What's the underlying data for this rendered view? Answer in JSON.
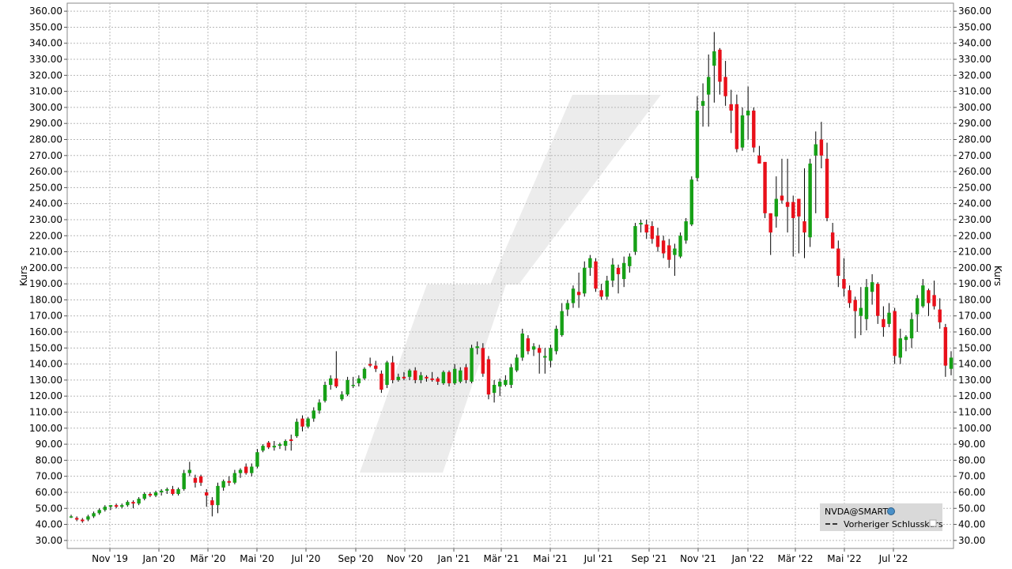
{
  "chart_data": {
    "type": "candlestick",
    "ylabel": "Kurs",
    "ylim": [
      25,
      365
    ],
    "y_ticks": [
      "30.00",
      "40.00",
      "50.00",
      "60.00",
      "70.00",
      "80.00",
      "90.00",
      "100.00",
      "110.00",
      "120.00",
      "130.00",
      "140.00",
      "150.00",
      "160.00",
      "170.00",
      "180.00",
      "190.00",
      "200.00",
      "210.00",
      "220.00",
      "230.00",
      "240.00",
      "250.00",
      "260.00",
      "270.00",
      "280.00",
      "290.00",
      "300.00",
      "310.00",
      "320.00",
      "330.00",
      "340.00",
      "350.00",
      "360.00"
    ],
    "x_ticks": [
      "Nov '19",
      "Jan '20",
      "Mär '20",
      "Mai '20",
      "Jul '20",
      "Sep '20",
      "Nov '20",
      "Jan '21",
      "Mär '21",
      "Mai '21",
      "Jul '21",
      "Sep '21",
      "Nov '21",
      "Jan '22",
      "Mär '22",
      "Mai '22",
      "Jul '22"
    ],
    "grid": true,
    "legend": {
      "position": "bottom-right",
      "entries": [
        "NVDA@SMART",
        "Vorheriger Schlusskurs"
      ]
    },
    "colors": {
      "up": "#16a016",
      "down": "#e8101a",
      "wick": "#000000",
      "grid": "#b8b8b8",
      "legend_bg": "#d9d9d9"
    },
    "weeks": [
      {
        "o": 45,
        "h": 46,
        "l": 44,
        "c": 45
      },
      {
        "o": 44,
        "h": 45,
        "l": 42,
        "c": 43
      },
      {
        "o": 43,
        "h": 44,
        "l": 41,
        "c": 42
      },
      {
        "o": 43,
        "h": 46,
        "l": 42,
        "c": 45
      },
      {
        "o": 45,
        "h": 48,
        "l": 44,
        "c": 47
      },
      {
        "o": 47,
        "h": 50,
        "l": 46,
        "c": 49
      },
      {
        "o": 49,
        "h": 52,
        "l": 48,
        "c": 51
      },
      {
        "o": 51,
        "h": 52,
        "l": 49,
        "c": 52
      },
      {
        "o": 52,
        "h": 53,
        "l": 50,
        "c": 51
      },
      {
        "o": 51,
        "h": 53,
        "l": 50,
        "c": 52
      },
      {
        "o": 52,
        "h": 55,
        "l": 51,
        "c": 54
      },
      {
        "o": 54,
        "h": 55,
        "l": 50,
        "c": 53
      },
      {
        "o": 53,
        "h": 57,
        "l": 52,
        "c": 56
      },
      {
        "o": 56,
        "h": 60,
        "l": 55,
        "c": 59
      },
      {
        "o": 59,
        "h": 60,
        "l": 57,
        "c": 58
      },
      {
        "o": 58,
        "h": 61,
        "l": 57,
        "c": 60
      },
      {
        "o": 60,
        "h": 62,
        "l": 58,
        "c": 61
      },
      {
        "o": 61,
        "h": 63,
        "l": 59,
        "c": 62
      },
      {
        "o": 62,
        "h": 64,
        "l": 58,
        "c": 59
      },
      {
        "o": 59,
        "h": 63,
        "l": 58,
        "c": 62
      },
      {
        "o": 62,
        "h": 74,
        "l": 61,
        "c": 72
      },
      {
        "o": 72,
        "h": 79,
        "l": 70,
        "c": 74
      },
      {
        "o": 69,
        "h": 71,
        "l": 63,
        "c": 66
      },
      {
        "o": 70,
        "h": 71,
        "l": 64,
        "c": 66
      },
      {
        "o": 60,
        "h": 62,
        "l": 51,
        "c": 58
      },
      {
        "o": 55,
        "h": 57,
        "l": 45,
        "c": 52
      },
      {
        "o": 52,
        "h": 66,
        "l": 47,
        "c": 64
      },
      {
        "o": 63,
        "h": 68,
        "l": 61,
        "c": 67
      },
      {
        "o": 67,
        "h": 70,
        "l": 64,
        "c": 66
      },
      {
        "o": 66,
        "h": 74,
        "l": 65,
        "c": 72
      },
      {
        "o": 72,
        "h": 75,
        "l": 69,
        "c": 74
      },
      {
        "o": 76,
        "h": 78,
        "l": 71,
        "c": 72
      },
      {
        "o": 72,
        "h": 78,
        "l": 70,
        "c": 76
      },
      {
        "o": 76,
        "h": 87,
        "l": 75,
        "c": 85
      },
      {
        "o": 86,
        "h": 90,
        "l": 85,
        "c": 89
      },
      {
        "o": 91,
        "h": 92,
        "l": 87,
        "c": 88
      },
      {
        "o": 88,
        "h": 92,
        "l": 86,
        "c": 89
      },
      {
        "o": 89,
        "h": 91,
        "l": 87,
        "c": 90
      },
      {
        "o": 89,
        "h": 93,
        "l": 86,
        "c": 92
      },
      {
        "o": 93,
        "h": 96,
        "l": 86,
        "c": 92
      },
      {
        "o": 95,
        "h": 106,
        "l": 94,
        "c": 104
      },
      {
        "o": 106,
        "h": 108,
        "l": 98,
        "c": 101
      },
      {
        "o": 101,
        "h": 107,
        "l": 100,
        "c": 106
      },
      {
        "o": 106,
        "h": 113,
        "l": 104,
        "c": 111
      },
      {
        "o": 111,
        "h": 118,
        "l": 109,
        "c": 116
      },
      {
        "o": 117,
        "h": 129,
        "l": 116,
        "c": 127
      },
      {
        "o": 127,
        "h": 133,
        "l": 124,
        "c": 131
      },
      {
        "o": 131,
        "h": 148,
        "l": 125,
        "c": 126
      },
      {
        "o": 118,
        "h": 123,
        "l": 117,
        "c": 121
      },
      {
        "o": 121,
        "h": 132,
        "l": 120,
        "c": 130
      },
      {
        "o": 127,
        "h": 132,
        "l": 125,
        "c": 127
      },
      {
        "o": 128,
        "h": 133,
        "l": 126,
        "c": 131
      },
      {
        "o": 131,
        "h": 138,
        "l": 130,
        "c": 137
      },
      {
        "o": 140,
        "h": 144,
        "l": 138,
        "c": 139
      },
      {
        "o": 139,
        "h": 142,
        "l": 135,
        "c": 137
      },
      {
        "o": 134,
        "h": 136,
        "l": 122,
        "c": 124
      },
      {
        "o": 127,
        "h": 142,
        "l": 125,
        "c": 141
      },
      {
        "o": 141,
        "h": 145,
        "l": 128,
        "c": 130
      },
      {
        "o": 130,
        "h": 134,
        "l": 129,
        "c": 132
      },
      {
        "o": 132,
        "h": 135,
        "l": 130,
        "c": 131
      },
      {
        "o": 132,
        "h": 137,
        "l": 130,
        "c": 136
      },
      {
        "o": 136,
        "h": 138,
        "l": 128,
        "c": 130
      },
      {
        "o": 130,
        "h": 135,
        "l": 128,
        "c": 133
      },
      {
        "o": 132,
        "h": 133,
        "l": 129,
        "c": 131
      },
      {
        "o": 131,
        "h": 135,
        "l": 129,
        "c": 130
      },
      {
        "o": 131,
        "h": 132,
        "l": 127,
        "c": 129
      },
      {
        "o": 128,
        "h": 136,
        "l": 127,
        "c": 135
      },
      {
        "o": 135,
        "h": 136,
        "l": 126,
        "c": 128
      },
      {
        "o": 128,
        "h": 140,
        "l": 127,
        "c": 137
      },
      {
        "o": 129,
        "h": 138,
        "l": 128,
        "c": 136
      },
      {
        "o": 138,
        "h": 140,
        "l": 128,
        "c": 130
      },
      {
        "o": 129,
        "h": 152,
        "l": 128,
        "c": 150
      },
      {
        "o": 150,
        "h": 154,
        "l": 146,
        "c": 151
      },
      {
        "o": 150,
        "h": 153,
        "l": 132,
        "c": 134
      },
      {
        "o": 143,
        "h": 145,
        "l": 118,
        "c": 121
      },
      {
        "o": 122,
        "h": 130,
        "l": 116,
        "c": 127
      },
      {
        "o": 126,
        "h": 131,
        "l": 120,
        "c": 129
      },
      {
        "o": 127,
        "h": 133,
        "l": 126,
        "c": 130
      },
      {
        "o": 127,
        "h": 140,
        "l": 125,
        "c": 138
      },
      {
        "o": 136,
        "h": 146,
        "l": 135,
        "c": 144
      },
      {
        "o": 144,
        "h": 162,
        "l": 142,
        "c": 159
      },
      {
        "o": 156,
        "h": 158,
        "l": 146,
        "c": 148
      },
      {
        "o": 149,
        "h": 153,
        "l": 145,
        "c": 151
      },
      {
        "o": 150,
        "h": 152,
        "l": 134,
        "c": 147
      },
      {
        "o": 144,
        "h": 150,
        "l": 134,
        "c": 145
      },
      {
        "o": 142,
        "h": 152,
        "l": 138,
        "c": 150
      },
      {
        "o": 148,
        "h": 164,
        "l": 146,
        "c": 162
      },
      {
        "o": 158,
        "h": 178,
        "l": 157,
        "c": 173
      },
      {
        "o": 174,
        "h": 180,
        "l": 170,
        "c": 178
      },
      {
        "o": 178,
        "h": 189,
        "l": 175,
        "c": 187
      },
      {
        "o": 185,
        "h": 197,
        "l": 175,
        "c": 183
      },
      {
        "o": 184,
        "h": 204,
        "l": 182,
        "c": 200
      },
      {
        "o": 200,
        "h": 208,
        "l": 195,
        "c": 206
      },
      {
        "o": 204,
        "h": 206,
        "l": 185,
        "c": 187
      },
      {
        "o": 186,
        "h": 190,
        "l": 180,
        "c": 182
      },
      {
        "o": 182,
        "h": 195,
        "l": 180,
        "c": 192
      },
      {
        "o": 192,
        "h": 206,
        "l": 188,
        "c": 202
      },
      {
        "o": 200,
        "h": 202,
        "l": 184,
        "c": 196
      },
      {
        "o": 193,
        "h": 207,
        "l": 188,
        "c": 203
      },
      {
        "o": 201,
        "h": 209,
        "l": 197,
        "c": 207
      },
      {
        "o": 210,
        "h": 228,
        "l": 208,
        "c": 226
      },
      {
        "o": 227,
        "h": 230,
        "l": 222,
        "c": 228
      },
      {
        "o": 227,
        "h": 230,
        "l": 218,
        "c": 222
      },
      {
        "o": 226,
        "h": 229,
        "l": 215,
        "c": 218
      },
      {
        "o": 220,
        "h": 225,
        "l": 210,
        "c": 213
      },
      {
        "o": 217,
        "h": 220,
        "l": 206,
        "c": 209
      },
      {
        "o": 214,
        "h": 218,
        "l": 200,
        "c": 205
      },
      {
        "o": 208,
        "h": 215,
        "l": 195,
        "c": 212
      },
      {
        "o": 207,
        "h": 222,
        "l": 206,
        "c": 220
      },
      {
        "o": 217,
        "h": 231,
        "l": 215,
        "c": 229
      },
      {
        "o": 227,
        "h": 257,
        "l": 226,
        "c": 255
      },
      {
        "o": 256,
        "h": 307,
        "l": 254,
        "c": 298
      },
      {
        "o": 301,
        "h": 315,
        "l": 288,
        "c": 304
      },
      {
        "o": 308,
        "h": 333,
        "l": 288,
        "c": 319
      },
      {
        "o": 326,
        "h": 347,
        "l": 303,
        "c": 335
      },
      {
        "o": 336,
        "h": 337,
        "l": 308,
        "c": 316
      },
      {
        "o": 319,
        "h": 329,
        "l": 301,
        "c": 307
      },
      {
        "o": 302,
        "h": 311,
        "l": 284,
        "c": 298
      },
      {
        "o": 302,
        "h": 308,
        "l": 272,
        "c": 274
      },
      {
        "o": 275,
        "h": 300,
        "l": 273,
        "c": 295
      },
      {
        "o": 295,
        "h": 313,
        "l": 280,
        "c": 298
      },
      {
        "o": 298,
        "h": 300,
        "l": 272,
        "c": 275
      },
      {
        "o": 270,
        "h": 276,
        "l": 265,
        "c": 265
      },
      {
        "o": 266,
        "h": 258,
        "l": 231,
        "c": 234
      },
      {
        "o": 234,
        "h": 231,
        "l": 208,
        "c": 222
      },
      {
        "o": 232,
        "h": 257,
        "l": 225,
        "c": 243
      },
      {
        "o": 245,
        "h": 268,
        "l": 240,
        "c": 242
      },
      {
        "o": 241,
        "h": 268,
        "l": 222,
        "c": 238
      },
      {
        "o": 241,
        "h": 245,
        "l": 207,
        "c": 231
      },
      {
        "o": 243,
        "h": 242,
        "l": 209,
        "c": 232
      },
      {
        "o": 229,
        "h": 262,
        "l": 206,
        "c": 222
      },
      {
        "o": 219,
        "h": 268,
        "l": 213,
        "c": 265
      },
      {
        "o": 270,
        "h": 285,
        "l": 234,
        "c": 277
      },
      {
        "o": 280,
        "h": 291,
        "l": 262,
        "c": 270
      },
      {
        "o": 268,
        "h": 278,
        "l": 229,
        "c": 231
      },
      {
        "o": 222,
        "h": 228,
        "l": 212,
        "c": 212
      },
      {
        "o": 212,
        "h": 217,
        "l": 188,
        "c": 195
      },
      {
        "o": 193,
        "h": 206,
        "l": 182,
        "c": 187
      },
      {
        "o": 186,
        "h": 189,
        "l": 175,
        "c": 178
      },
      {
        "o": 180,
        "h": 182,
        "l": 156,
        "c": 173
      },
      {
        "o": 170,
        "h": 188,
        "l": 158,
        "c": 175
      },
      {
        "o": 168,
        "h": 193,
        "l": 161,
        "c": 188
      },
      {
        "o": 185,
        "h": 196,
        "l": 177,
        "c": 191
      },
      {
        "o": 190,
        "h": 191,
        "l": 165,
        "c": 170
      },
      {
        "o": 168,
        "h": 176,
        "l": 157,
        "c": 163
      },
      {
        "o": 165,
        "h": 178,
        "l": 163,
        "c": 172
      },
      {
        "o": 173,
        "h": 175,
        "l": 140,
        "c": 145
      },
      {
        "o": 144,
        "h": 162,
        "l": 140,
        "c": 156
      },
      {
        "o": 155,
        "h": 158,
        "l": 148,
        "c": 157
      },
      {
        "o": 156,
        "h": 172,
        "l": 150,
        "c": 168
      },
      {
        "o": 171,
        "h": 183,
        "l": 160,
        "c": 181
      },
      {
        "o": 176,
        "h": 193,
        "l": 175,
        "c": 189
      },
      {
        "o": 186,
        "h": 187,
        "l": 170,
        "c": 178
      },
      {
        "o": 183,
        "h": 192,
        "l": 174,
        "c": 176
      },
      {
        "o": 174,
        "h": 181,
        "l": 162,
        "c": 166
      },
      {
        "o": 163,
        "h": 165,
        "l": 132,
        "c": 139
      },
      {
        "o": 137,
        "h": 148,
        "l": 133,
        "c": 144
      }
    ]
  },
  "legend": {
    "symbol": "NVDA@SMART",
    "prev_close_label": "Vorheriger Schlusskurs"
  },
  "axes": {
    "left_title": "Kurs",
    "right_title": "Kurs"
  }
}
